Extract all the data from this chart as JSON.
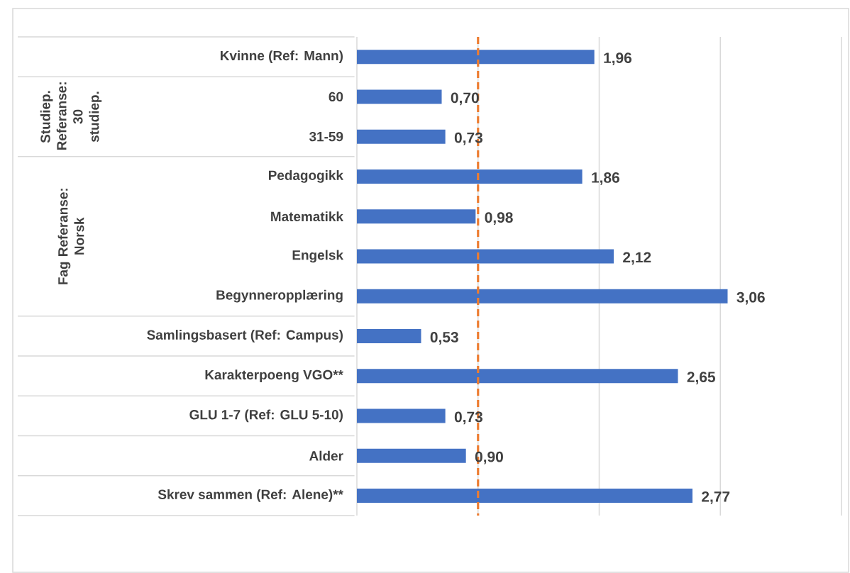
{
  "chart_data": {
    "type": "bar",
    "orientation": "horizontal",
    "categories": [
      "Kvinne (Ref: Mann)",
      "60",
      "31-59",
      "Pedagogikk",
      "Matematikk",
      "Engelsk",
      "Begynneropplæring",
      "Samlingsbasert (Ref: Campus)",
      "Karakterpoeng VGO**",
      "GLU 1-7 (Ref: GLU 5-10)",
      "Alder",
      "Skrev sammen (Ref: Alene)**"
    ],
    "values": [
      1.96,
      0.7,
      0.73,
      1.86,
      0.98,
      2.12,
      3.06,
      0.53,
      2.65,
      0.73,
      0.9,
      2.77
    ],
    "value_labels": [
      "1,96",
      "0,70",
      "0,73",
      "1,86",
      "0,98",
      "2,12",
      "3,06",
      "0,53",
      "2,65",
      "0,73",
      "0,90",
      "2,77"
    ],
    "color": "#4472c4",
    "xlim": [
      0,
      4
    ],
    "xticks": [
      {
        "value": 0,
        "label": null
      },
      {
        "value": 1,
        "label": null
      },
      {
        "value": 2,
        "label": null
      },
      {
        "value": 3,
        "label": null
      },
      {
        "value": 4,
        "label": null
      }
    ],
    "grid": "x",
    "ref_lines": [
      {
        "axis": "x",
        "value": 1,
        "color": "#ed7d31",
        "line_style": "dashed"
      }
    ],
    "annotations": [
      "Studiep. Referanse: 30 studiep.",
      "Fag Referanse: Norsk"
    ]
  }
}
